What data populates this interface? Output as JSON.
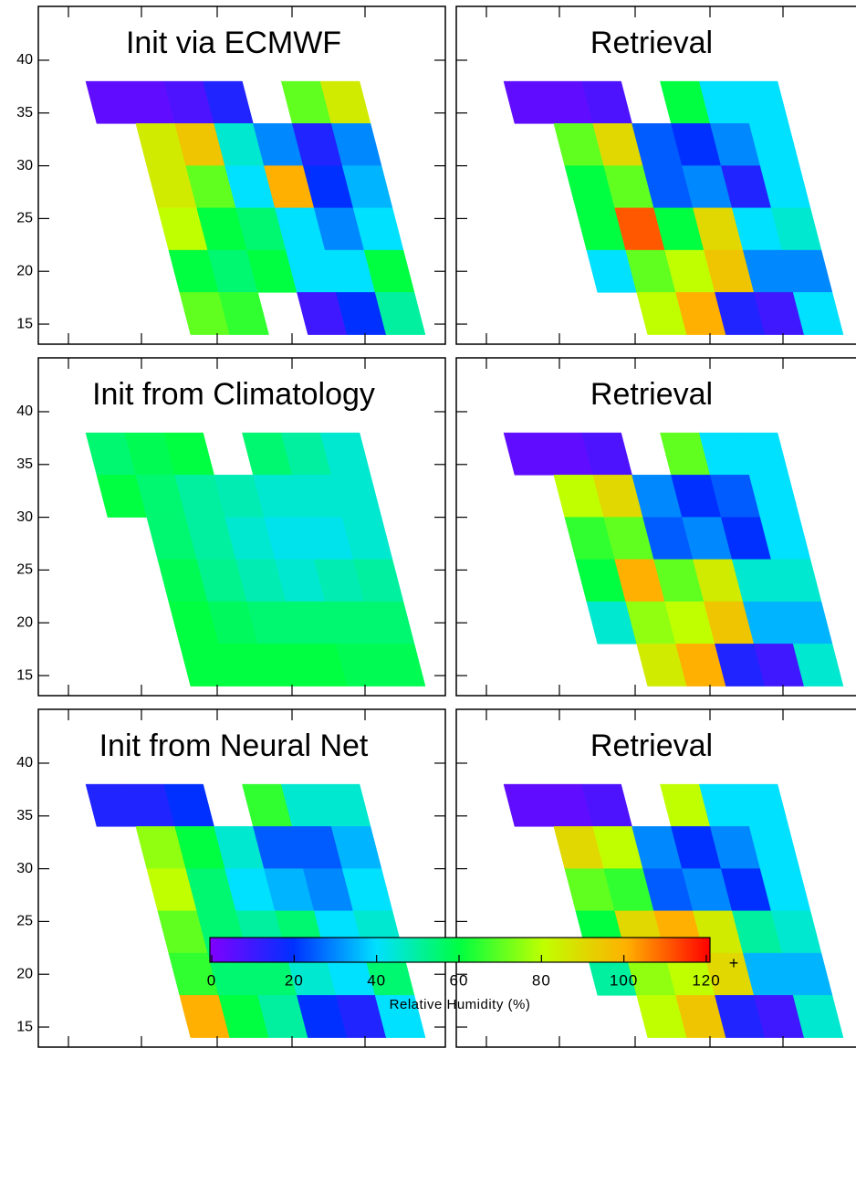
{
  "chart_data": [
    {
      "type": "heatmap",
      "title": "Init via ECMWF",
      "y": [
        36,
        32,
        28,
        24,
        20,
        16
      ],
      "values": [
        [
          5,
          5,
          8,
          15,
          null,
          70,
          85
        ],
        [
          null,
          85,
          95,
          45,
          30,
          15,
          30
        ],
        [
          null,
          85,
          70,
          40,
          100,
          20,
          35
        ],
        [
          null,
          80,
          60,
          55,
          40,
          30,
          40
        ],
        [
          null,
          60,
          55,
          60,
          40,
          40,
          60
        ],
        [
          null,
          70,
          65,
          null,
          10,
          20,
          50
        ]
      ],
      "ylim": [
        13.1,
        45.1
      ],
      "yticks": [
        15,
        20,
        25,
        30,
        35,
        40
      ]
    },
    {
      "type": "heatmap",
      "title": "Retrieval",
      "y": [
        36,
        32,
        28,
        24,
        20,
        16
      ],
      "values": [
        [
          5,
          5,
          8,
          null,
          60,
          40,
          40
        ],
        [
          null,
          70,
          90,
          25,
          20,
          30,
          40
        ],
        [
          null,
          60,
          70,
          25,
          30,
          15,
          40
        ],
        [
          null,
          60,
          110,
          60,
          90,
          40,
          45
        ],
        [
          null,
          40,
          70,
          80,
          95,
          30,
          30
        ],
        [
          null,
          null,
          80,
          100,
          15,
          10,
          40
        ]
      ],
      "ylim": [
        13.1,
        45.1
      ],
      "yticks": [
        15,
        20,
        25,
        30,
        35,
        40
      ]
    },
    {
      "type": "heatmap",
      "title": "Init from Climatology",
      "y": [
        36,
        32,
        28,
        24,
        20,
        16
      ],
      "values": [
        [
          55,
          58,
          60,
          null,
          55,
          50,
          45
        ],
        [
          60,
          55,
          50,
          48,
          45,
          45,
          45
        ],
        [
          null,
          55,
          50,
          45,
          42,
          42,
          45
        ],
        [
          null,
          58,
          52,
          48,
          45,
          48,
          50
        ],
        [
          null,
          60,
          57,
          55,
          55,
          55,
          55
        ],
        [
          null,
          60,
          60,
          60,
          60,
          58,
          58
        ]
      ],
      "ylim": [
        13.1,
        45.1
      ],
      "yticks": [
        15,
        20,
        25,
        30,
        35,
        40
      ]
    },
    {
      "type": "heatmap",
      "title": "Retrieval",
      "y": [
        36,
        32,
        28,
        24,
        20,
        16
      ],
      "values": [
        [
          5,
          5,
          8,
          null,
          70,
          40,
          40
        ],
        [
          null,
          80,
          90,
          30,
          20,
          25,
          40
        ],
        [
          null,
          65,
          70,
          25,
          30,
          20,
          40
        ],
        [
          null,
          60,
          100,
          70,
          85,
          45,
          45
        ],
        [
          null,
          45,
          75,
          80,
          95,
          35,
          35
        ],
        [
          null,
          null,
          85,
          100,
          15,
          10,
          45
        ]
      ],
      "ylim": [
        13.1,
        45.1
      ],
      "yticks": [
        15,
        20,
        25,
        30,
        35,
        40
      ]
    },
    {
      "type": "heatmap",
      "title": "Init from Neural Net",
      "y": [
        36,
        32,
        28,
        24,
        20,
        16
      ],
      "values": [
        [
          15,
          15,
          20,
          null,
          65,
          45,
          45
        ],
        [
          null,
          75,
          60,
          45,
          25,
          25,
          35
        ],
        [
          null,
          80,
          55,
          40,
          35,
          30,
          40
        ],
        [
          null,
          70,
          55,
          50,
          55,
          40,
          45
        ],
        [
          null,
          65,
          55,
          55,
          45,
          40,
          55
        ],
        [
          null,
          100,
          60,
          50,
          20,
          15,
          40
        ]
      ],
      "ylim": [
        13.1,
        45.1
      ],
      "yticks": [
        15,
        20,
        25,
        30,
        35,
        40
      ]
    },
    {
      "type": "heatmap",
      "title": "Retrieval",
      "y": [
        36,
        32,
        28,
        24,
        20,
        16
      ],
      "values": [
        [
          5,
          5,
          8,
          null,
          80,
          40,
          40
        ],
        [
          null,
          90,
          80,
          30,
          20,
          30,
          40
        ],
        [
          null,
          70,
          65,
          25,
          30,
          20,
          40
        ],
        [
          null,
          60,
          90,
          100,
          85,
          50,
          45
        ],
        [
          null,
          50,
          75,
          80,
          90,
          35,
          35
        ],
        [
          null,
          null,
          80,
          95,
          15,
          10,
          45
        ]
      ],
      "ylim": [
        13.1,
        45.1
      ],
      "yticks": [
        15,
        20,
        25,
        30,
        35,
        40
      ]
    }
  ],
  "colorbar": {
    "label": "Relative Humidity (%)",
    "lim": [
      0,
      120
    ],
    "ticks": [
      0,
      20,
      40,
      60,
      80,
      100,
      120
    ],
    "overflow_label": "+"
  }
}
